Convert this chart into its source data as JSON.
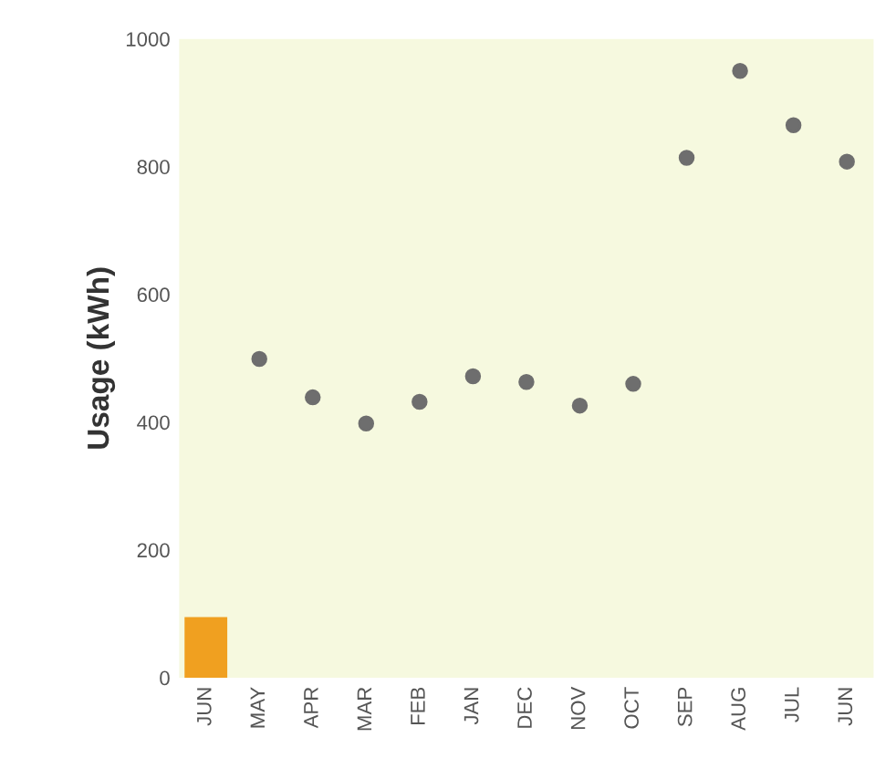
{
  "chart_data": {
    "type": "scatter",
    "ylabel": "Usage (kWh)",
    "categories": [
      "JUN",
      "MAY",
      "APR",
      "MAR",
      "FEB",
      "JAN",
      "DEC",
      "NOV",
      "OCT",
      "SEP",
      "AUG",
      "JUL",
      "JUN"
    ],
    "series": [
      {
        "type": "bar",
        "color": "#f0a020",
        "values": [
          95,
          null,
          null,
          null,
          null,
          null,
          null,
          null,
          null,
          null,
          null,
          null,
          null
        ]
      },
      {
        "color": "#6e6e6e",
        "values": [
          null,
          499,
          439,
          398,
          432,
          472,
          463,
          426,
          460,
          814,
          950,
          865,
          808
        ]
      }
    ],
    "ylim": [
      0,
      1000
    ],
    "yticks": [
      0,
      200,
      400,
      600,
      800,
      1000
    ],
    "grid": false,
    "legend": false,
    "marker": "circle"
  }
}
